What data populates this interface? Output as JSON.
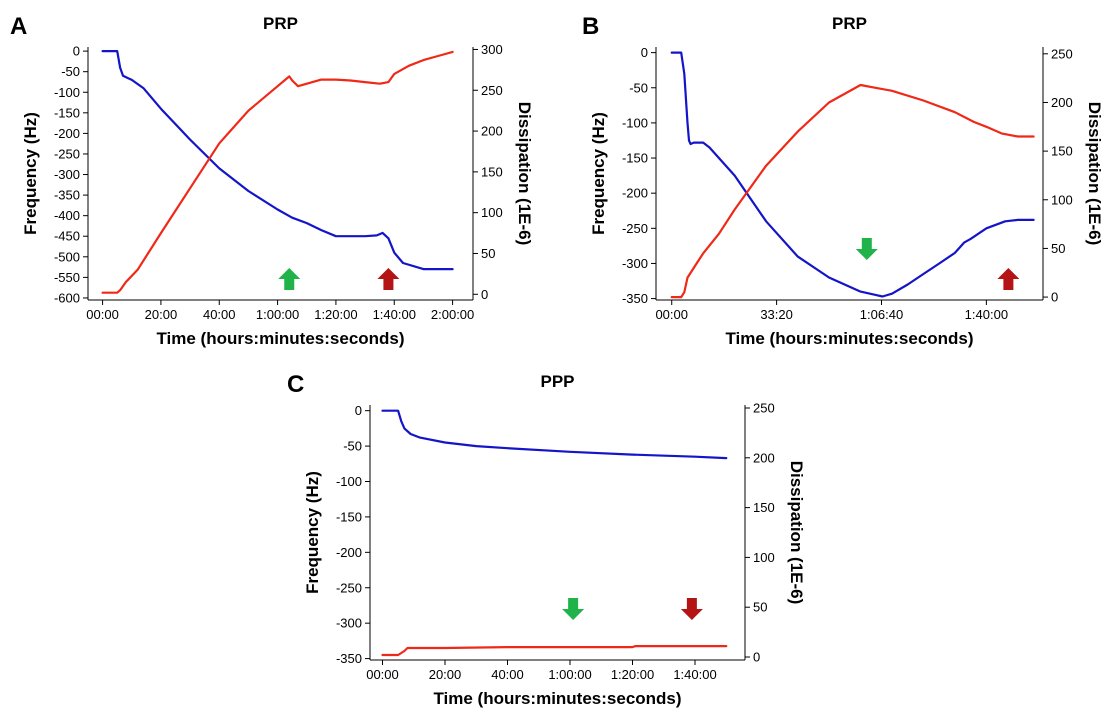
{
  "colors": {
    "frequency": "#1414c8",
    "dissipation": "#f02818",
    "marker_green": "#1fb34a",
    "marker_red": "#b41414"
  },
  "chart_data": [
    {
      "panel_label": "A",
      "type": "line",
      "title": "PRP",
      "xlabel": "Time (hours:minutes:seconds)",
      "ylabel": "Frequency (Hz)",
      "y2label": "Dissipation (1E-6)",
      "x_unit": "minutes",
      "xlim": [
        -5,
        127
      ],
      "xticks": [
        0,
        20,
        40,
        60,
        80,
        100,
        120
      ],
      "xtick_labels": [
        "00:00",
        "20:00",
        "40:00",
        "1:00:00",
        "1:20:00",
        "1:40:00",
        "2:00:00"
      ],
      "ylim": [
        -605,
        10
      ],
      "yticks": [
        0,
        -50,
        -100,
        -150,
        -200,
        -250,
        -300,
        -350,
        -400,
        -450,
        -500,
        -550,
        -600
      ],
      "ytick_labels": [
        "0",
        "-50",
        "-100",
        "-150",
        "-200",
        "-250",
        "-300",
        "-350",
        "-400",
        "-450",
        "-500",
        "-550",
        "-600"
      ],
      "y2lim": [
        -7,
        303
      ],
      "y2ticks": [
        0,
        50,
        100,
        150,
        200,
        250,
        300
      ],
      "y2tick_labels": [
        "0",
        "50",
        "100",
        "150",
        "200",
        "250",
        "300"
      ],
      "series": [
        {
          "name": "Frequency",
          "axis": "left",
          "x": [
            0,
            5,
            6,
            7,
            10,
            14,
            20,
            30,
            40,
            50,
            60,
            65,
            70,
            75,
            80,
            85,
            90,
            94,
            96,
            98,
            100,
            103,
            110,
            120
          ],
          "y": [
            0,
            0,
            -40,
            -60,
            -70,
            -90,
            -140,
            -215,
            -285,
            -340,
            -385,
            -405,
            -418,
            -435,
            -450,
            -450,
            -450,
            -448,
            -442,
            -455,
            -490,
            -515,
            -530,
            -530
          ]
        },
        {
          "name": "Dissipation",
          "axis": "right",
          "x": [
            0,
            5,
            6,
            8,
            12,
            20,
            30,
            40,
            50,
            60,
            64,
            65,
            67,
            70,
            75,
            80,
            85,
            90,
            95,
            98,
            100,
            105,
            110,
            115,
            120
          ],
          "y": [
            2,
            2,
            5,
            15,
            30,
            75,
            130,
            185,
            225,
            255,
            267,
            262,
            255,
            258,
            263,
            263,
            262,
            260,
            258,
            260,
            270,
            280,
            287,
            292,
            297
          ]
        }
      ],
      "markers": [
        {
          "x": 64,
          "direction": "up",
          "color": "green"
        },
        {
          "x": 98,
          "direction": "up",
          "color": "red"
        }
      ]
    },
    {
      "panel_label": "B",
      "type": "line",
      "title": "PRP",
      "xlabel": "Time (hours:minutes:seconds)",
      "ylabel": "Frequency (Hz)",
      "y2label": "Dissipation (1E-6)",
      "x_unit": "minutes",
      "xlim": [
        -5,
        118
      ],
      "xticks": [
        0,
        33.333,
        66.667,
        100
      ],
      "xtick_labels": [
        "00:00",
        "33:20",
        "1:06:40",
        "1:40:00"
      ],
      "ylim": [
        -352,
        8
      ],
      "yticks": [
        0,
        -50,
        -100,
        -150,
        -200,
        -250,
        -300,
        -350
      ],
      "ytick_labels": [
        "0",
        "-50",
        "-100",
        "-150",
        "-200",
        "-250",
        "-300",
        "-350"
      ],
      "y2lim": [
        -3,
        257
      ],
      "y2ticks": [
        0,
        50,
        100,
        150,
        200,
        250
      ],
      "y2tick_labels": [
        "0",
        "50",
        "100",
        "150",
        "200",
        "250"
      ],
      "series": [
        {
          "name": "Frequency",
          "axis": "left",
          "x": [
            0,
            3,
            4,
            5,
            5.5,
            6,
            7,
            10,
            12,
            20,
            30,
            40,
            50,
            60,
            65,
            67,
            70,
            75,
            80,
            85,
            90,
            93,
            95,
            100,
            103,
            106,
            110,
            115
          ],
          "y": [
            0,
            0,
            -30,
            -100,
            -125,
            -130,
            -128,
            -128,
            -135,
            -175,
            -240,
            -290,
            -320,
            -340,
            -345,
            -347,
            -343,
            -330,
            -315,
            -300,
            -285,
            -270,
            -265,
            -250,
            -245,
            -240,
            -238,
            -238
          ]
        },
        {
          "name": "Dissipation",
          "axis": "right",
          "x": [
            0,
            3,
            4,
            5,
            8,
            10,
            15,
            20,
            30,
            40,
            50,
            60,
            65,
            70,
            80,
            90,
            96,
            100,
            105,
            110,
            115
          ],
          "y": [
            0,
            0,
            5,
            20,
            35,
            45,
            65,
            90,
            135,
            170,
            200,
            218,
            215,
            212,
            202,
            190,
            180,
            175,
            168,
            165,
            165
          ]
        }
      ],
      "markers": [
        {
          "x": 62,
          "direction": "down",
          "color": "green"
        },
        {
          "x": 107,
          "direction": "up",
          "color": "red"
        }
      ]
    },
    {
      "panel_label": "C",
      "type": "line",
      "title": "PPP",
      "xlabel": "Time (hours:minutes:seconds)",
      "ylabel": "Frequency (Hz)",
      "y2label": "Dissipation (1E-6)",
      "x_unit": "minutes",
      "xlim": [
        -4,
        116
      ],
      "xticks": [
        0,
        20,
        40,
        60,
        80,
        100
      ],
      "xtick_labels": [
        "00:00",
        "20:00",
        "40:00",
        "1:00:00",
        "1:20:00",
        "1:40:00"
      ],
      "ylim": [
        -352,
        8
      ],
      "yticks": [
        0,
        -50,
        -100,
        -150,
        -200,
        -250,
        -300,
        -350
      ],
      "ytick_labels": [
        "0",
        "-50",
        "-100",
        "-150",
        "-200",
        "-250",
        "-300",
        "-350"
      ],
      "y2lim": [
        -3,
        253
      ],
      "y2ticks": [
        0,
        50,
        100,
        150,
        200,
        250
      ],
      "y2tick_labels": [
        "0",
        "50",
        "100",
        "150",
        "200",
        "250"
      ],
      "series": [
        {
          "name": "Frequency",
          "axis": "left",
          "x": [
            0,
            5,
            6,
            7,
            9,
            12,
            20,
            30,
            40,
            60,
            80,
            100,
            110
          ],
          "y": [
            0,
            0,
            -15,
            -25,
            -33,
            -38,
            -45,
            -50,
            -53,
            -58,
            -62,
            -65,
            -67
          ]
        },
        {
          "name": "Dissipation",
          "axis": "right",
          "x": [
            0,
            5,
            7,
            8,
            20,
            40,
            60,
            80,
            81,
            100,
            110
          ],
          "y": [
            2,
            2,
            6,
            9,
            9,
            10,
            10,
            10,
            11,
            11,
            11
          ]
        }
      ],
      "markers": [
        {
          "x": 61,
          "direction": "down",
          "color": "green"
        },
        {
          "x": 99,
          "direction": "down",
          "color": "red"
        }
      ]
    }
  ]
}
